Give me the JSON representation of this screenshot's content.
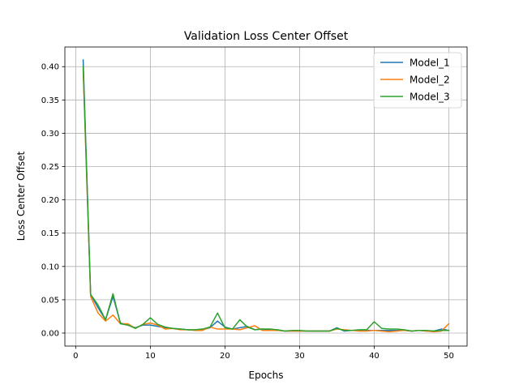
{
  "chart_data": {
    "type": "line",
    "title": "Validation Loss Center Offset",
    "xlabel": "Epochs",
    "ylabel": "Loss Center Offset",
    "xlim": [
      -1.45,
      52.45
    ],
    "ylim": [
      -0.0195,
      0.4295
    ],
    "xticks": [
      0,
      10,
      20,
      30,
      40,
      50
    ],
    "yticks": [
      0.0,
      0.05,
      0.1,
      0.15,
      0.2,
      0.25,
      0.3,
      0.35,
      0.4
    ],
    "grid": true,
    "legend_position": "top-right",
    "x": [
      1,
      2,
      3,
      4,
      5,
      6,
      7,
      8,
      9,
      10,
      11,
      12,
      13,
      14,
      15,
      16,
      17,
      18,
      19,
      20,
      21,
      22,
      23,
      24,
      25,
      26,
      27,
      28,
      29,
      30,
      31,
      32,
      33,
      34,
      35,
      36,
      37,
      38,
      39,
      40,
      41,
      42,
      43,
      44,
      45,
      46,
      47,
      48,
      49,
      50
    ],
    "series": [
      {
        "name": "Model_1",
        "color": "#1f77b4",
        "values": [
          0.41,
          0.058,
          0.038,
          0.02,
          0.055,
          0.015,
          0.012,
          0.008,
          0.012,
          0.012,
          0.01,
          0.008,
          0.007,
          0.006,
          0.005,
          0.004,
          0.005,
          0.008,
          0.018,
          0.009,
          0.006,
          0.008,
          0.01,
          0.005,
          0.006,
          0.005,
          0.005,
          0.003,
          0.003,
          0.003,
          0.003,
          0.003,
          0.003,
          0.003,
          0.008,
          0.003,
          0.004,
          0.004,
          0.004,
          0.004,
          0.004,
          0.004,
          0.004,
          0.004,
          0.003,
          0.004,
          0.003,
          0.003,
          0.006,
          0.004
        ]
      },
      {
        "name": "Model_2",
        "color": "#ff7f0e",
        "values": [
          0.395,
          0.055,
          0.03,
          0.018,
          0.027,
          0.014,
          0.014,
          0.007,
          0.013,
          0.015,
          0.012,
          0.006,
          0.007,
          0.005,
          0.005,
          0.004,
          0.004,
          0.009,
          0.006,
          0.006,
          0.006,
          0.005,
          0.008,
          0.011,
          0.004,
          0.004,
          0.004,
          0.003,
          0.003,
          0.003,
          0.003,
          0.003,
          0.003,
          0.003,
          0.006,
          0.005,
          0.004,
          0.003,
          0.003,
          0.004,
          0.003,
          0.002,
          0.003,
          0.004,
          0.003,
          0.004,
          0.003,
          0.002,
          0.003,
          0.014
        ]
      },
      {
        "name": "Model_3",
        "color": "#2ca02c",
        "values": [
          0.4,
          0.058,
          0.042,
          0.02,
          0.059,
          0.014,
          0.012,
          0.007,
          0.013,
          0.023,
          0.013,
          0.009,
          0.007,
          0.006,
          0.005,
          0.005,
          0.006,
          0.009,
          0.03,
          0.008,
          0.006,
          0.02,
          0.009,
          0.005,
          0.006,
          0.006,
          0.005,
          0.003,
          0.004,
          0.004,
          0.003,
          0.003,
          0.003,
          0.003,
          0.007,
          0.004,
          0.004,
          0.005,
          0.005,
          0.017,
          0.007,
          0.006,
          0.006,
          0.005,
          0.003,
          0.004,
          0.004,
          0.003,
          0.004,
          0.004
        ]
      }
    ]
  }
}
